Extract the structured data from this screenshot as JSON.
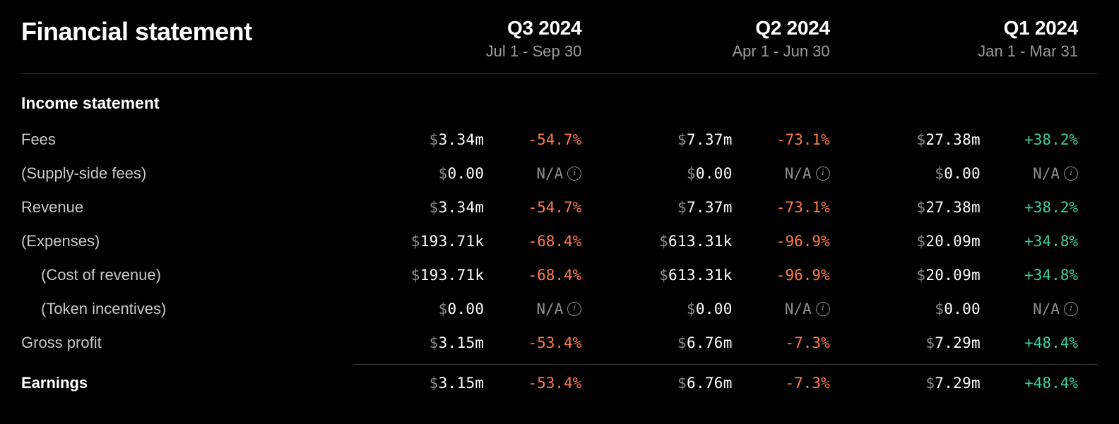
{
  "title": "Financial statement",
  "quarters": [
    {
      "name": "Q3 2024",
      "range": "Jul 1 - Sep 30"
    },
    {
      "name": "Q2 2024",
      "range": "Apr 1 - Jun 30"
    },
    {
      "name": "Q1 2024",
      "range": "Jan 1 - Mar 31"
    }
  ],
  "section_title": "Income statement",
  "currency_symbol": "$",
  "colors": {
    "background": "#000000",
    "text": "#ffffff",
    "muted": "#9a9a9a",
    "negative": "#ff7a4d",
    "positive": "#3fcf9a",
    "na": "#8e8e8e",
    "divider": "#2a2a2a"
  },
  "rows": [
    {
      "label": "Fees",
      "indent": 0,
      "bold": false,
      "cells": [
        {
          "value": "3.34m",
          "change": "-54.7%",
          "dir": "neg"
        },
        {
          "value": "7.37m",
          "change": "-73.1%",
          "dir": "neg"
        },
        {
          "value": "27.38m",
          "change": "+38.2%",
          "dir": "pos"
        }
      ]
    },
    {
      "label": "(Supply-side fees)",
      "indent": 0,
      "bold": false,
      "cells": [
        {
          "value": "0.00",
          "change": "N/A",
          "dir": "na",
          "info": true
        },
        {
          "value": "0.00",
          "change": "N/A",
          "dir": "na",
          "info": true
        },
        {
          "value": "0.00",
          "change": "N/A",
          "dir": "na",
          "info": true
        }
      ]
    },
    {
      "label": "Revenue",
      "indent": 0,
      "bold": false,
      "cells": [
        {
          "value": "3.34m",
          "change": "-54.7%",
          "dir": "neg"
        },
        {
          "value": "7.37m",
          "change": "-73.1%",
          "dir": "neg"
        },
        {
          "value": "27.38m",
          "change": "+38.2%",
          "dir": "pos"
        }
      ]
    },
    {
      "label": "(Expenses)",
      "indent": 0,
      "bold": false,
      "cells": [
        {
          "value": "193.71k",
          "change": "-68.4%",
          "dir": "neg"
        },
        {
          "value": "613.31k",
          "change": "-96.9%",
          "dir": "neg"
        },
        {
          "value": "20.09m",
          "change": "+34.8%",
          "dir": "pos"
        }
      ]
    },
    {
      "label": "(Cost of revenue)",
      "indent": 1,
      "bold": false,
      "cells": [
        {
          "value": "193.71k",
          "change": "-68.4%",
          "dir": "neg"
        },
        {
          "value": "613.31k",
          "change": "-96.9%",
          "dir": "neg"
        },
        {
          "value": "20.09m",
          "change": "+34.8%",
          "dir": "pos"
        }
      ]
    },
    {
      "label": "(Token incentives)",
      "indent": 1,
      "bold": false,
      "cells": [
        {
          "value": "0.00",
          "change": "N/A",
          "dir": "na",
          "info": true
        },
        {
          "value": "0.00",
          "change": "N/A",
          "dir": "na",
          "info": true
        },
        {
          "value": "0.00",
          "change": "N/A",
          "dir": "na",
          "info": true
        }
      ]
    },
    {
      "label": "Gross profit",
      "indent": 0,
      "bold": false,
      "cells": [
        {
          "value": "3.15m",
          "change": "-53.4%",
          "dir": "neg"
        },
        {
          "value": "6.76m",
          "change": "-7.3%",
          "dir": "neg"
        },
        {
          "value": "7.29m",
          "change": "+48.4%",
          "dir": "pos"
        }
      ]
    },
    {
      "label": "Earnings",
      "indent": 0,
      "bold": true,
      "separator_above": true,
      "cells": [
        {
          "value": "3.15m",
          "change": "-53.4%",
          "dir": "neg"
        },
        {
          "value": "6.76m",
          "change": "-7.3%",
          "dir": "neg"
        },
        {
          "value": "7.29m",
          "change": "+48.4%",
          "dir": "pos"
        }
      ]
    }
  ]
}
